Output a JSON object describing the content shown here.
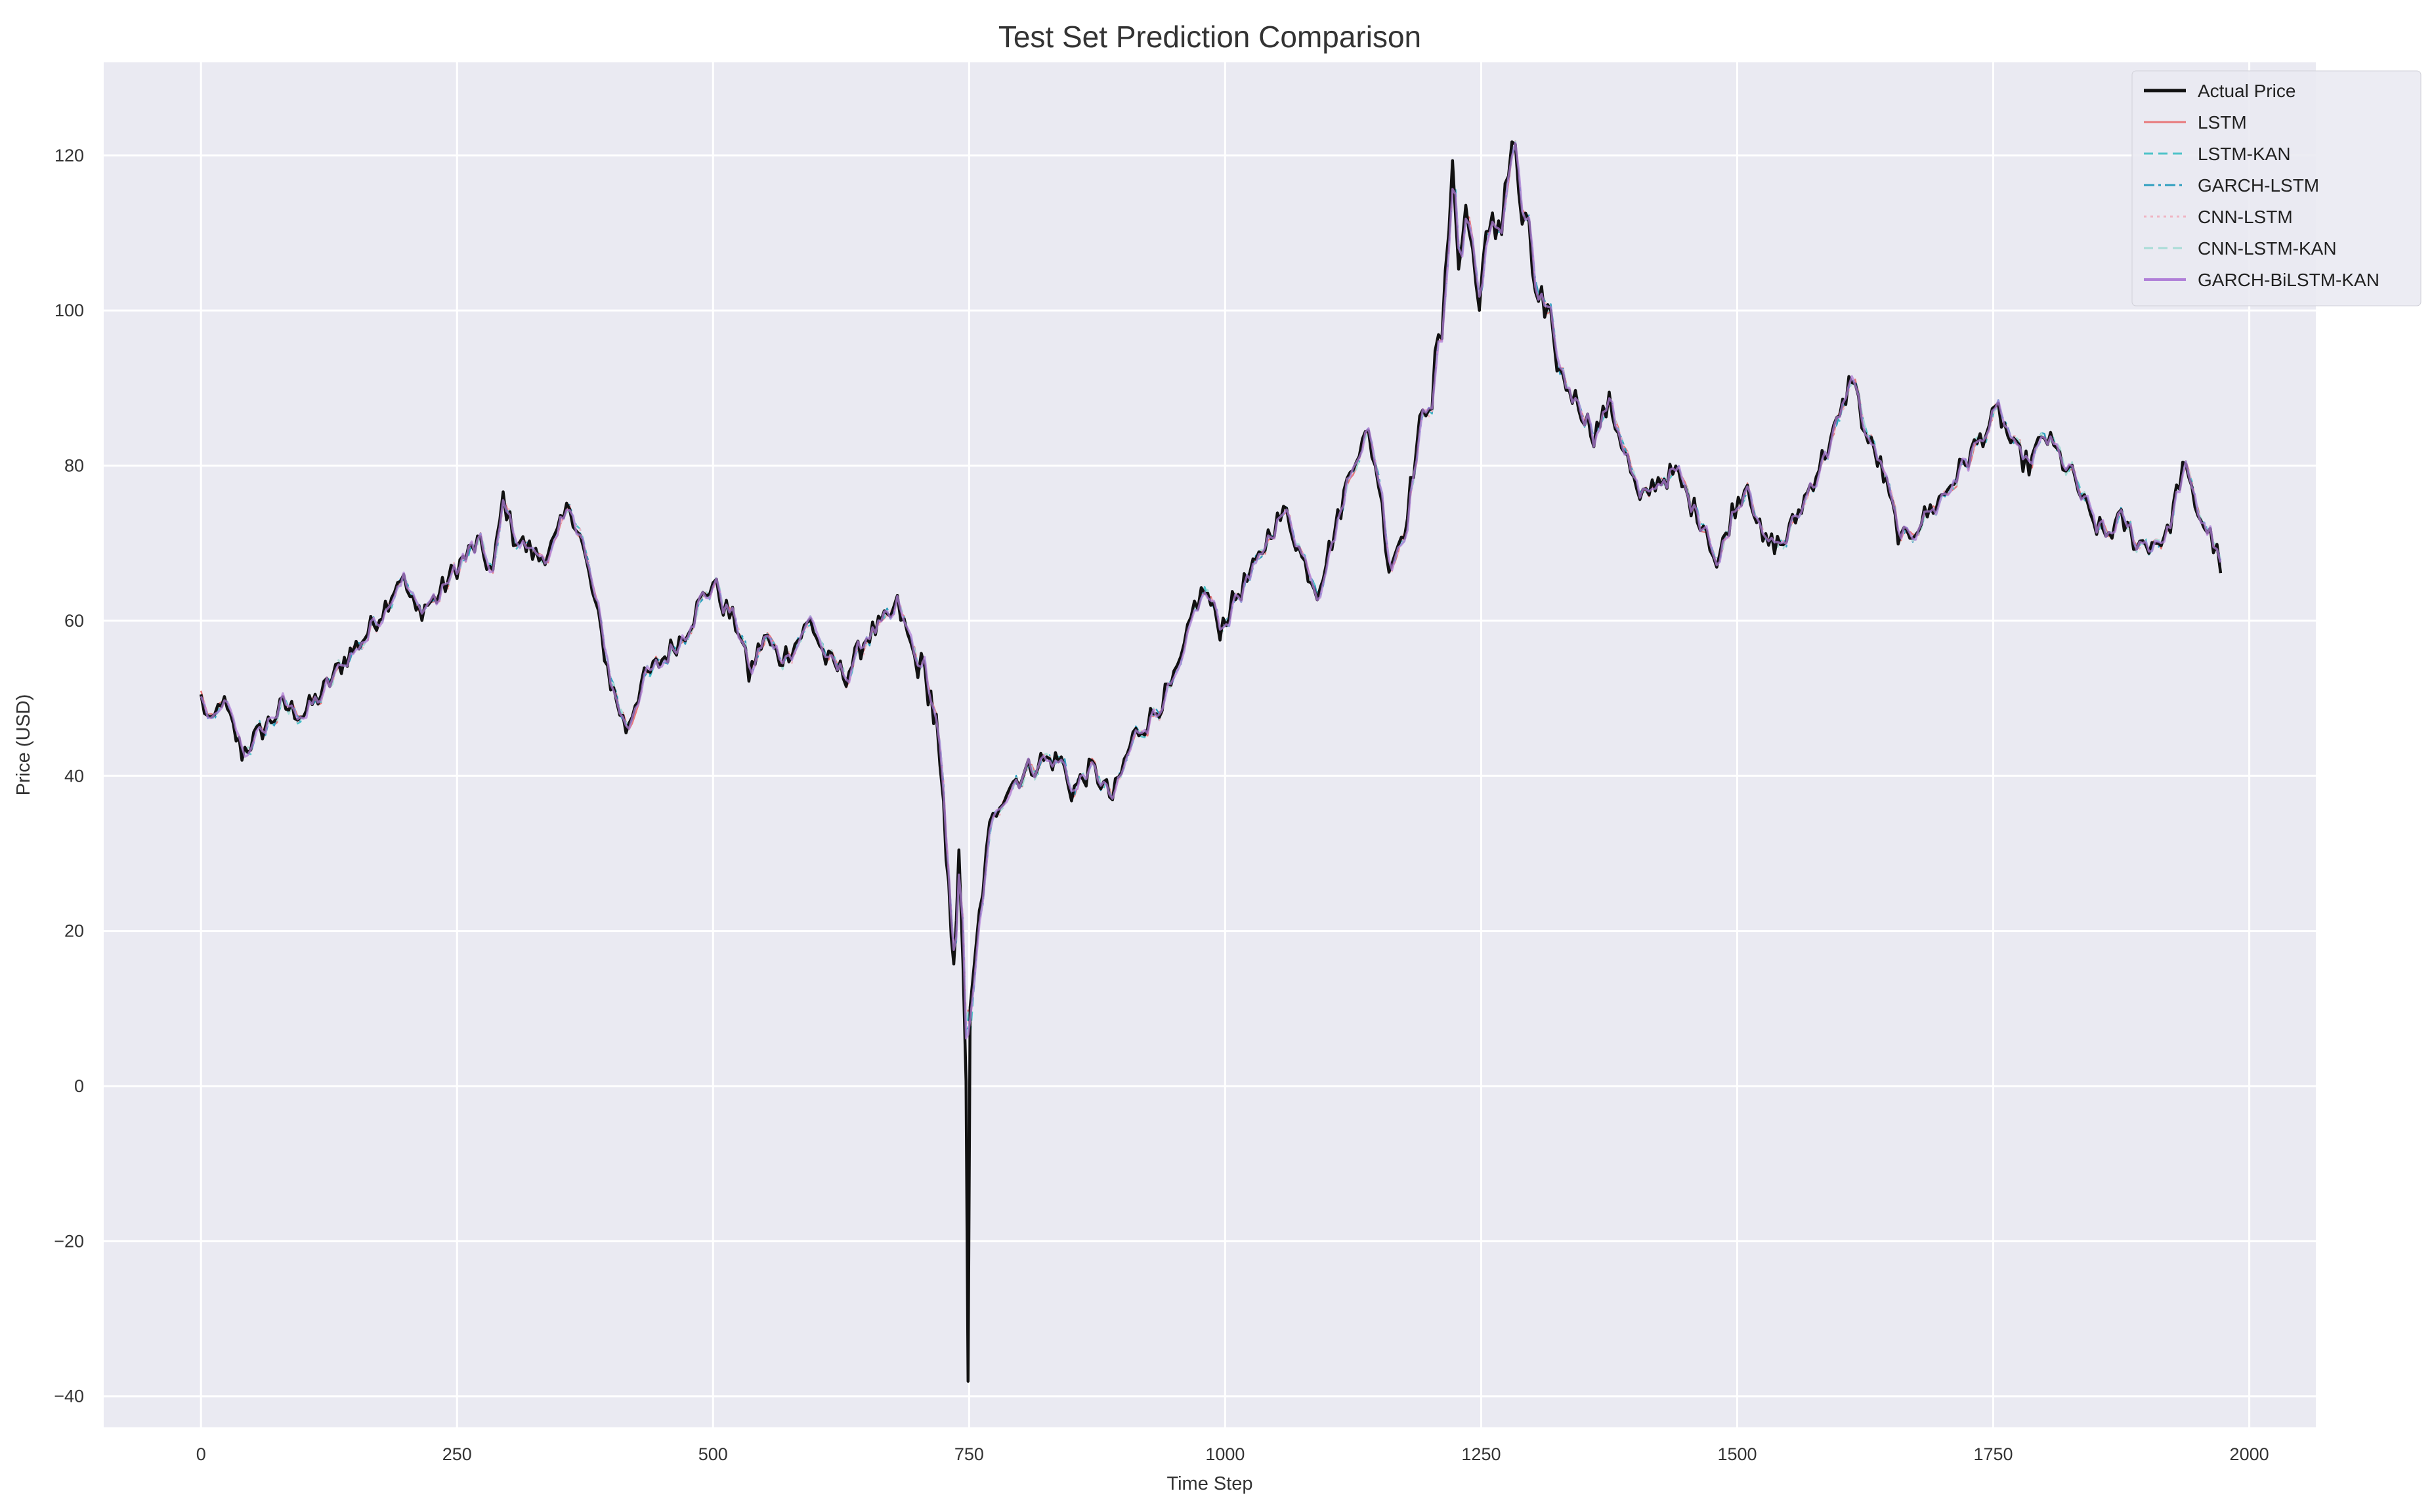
{
  "chart_data": {
    "type": "line",
    "title": "Test Set Prediction Comparison",
    "xlabel": "Time Step",
    "ylabel": "Price (USD)",
    "xlim": [
      -95,
      2065
    ],
    "ylim": [
      -44,
      132
    ],
    "xticks": [
      0,
      250,
      500,
      750,
      1000,
      1250,
      1500,
      1750,
      2000
    ],
    "yticks": [
      -40,
      -20,
      0,
      20,
      40,
      60,
      80,
      100,
      120
    ],
    "grid": true,
    "legend_position": "upper-right",
    "background": "#eaeaf2",
    "anchors": [
      [
        0,
        50
      ],
      [
        10,
        46
      ],
      [
        20,
        50
      ],
      [
        40,
        43
      ],
      [
        60,
        46
      ],
      [
        80,
        49
      ],
      [
        100,
        48
      ],
      [
        120,
        51
      ],
      [
        140,
        55
      ],
      [
        160,
        58
      ],
      [
        180,
        62
      ],
      [
        195,
        66
      ],
      [
        210,
        61
      ],
      [
        230,
        63
      ],
      [
        250,
        67
      ],
      [
        270,
        70
      ],
      [
        285,
        66
      ],
      [
        295,
        76
      ],
      [
        305,
        71
      ],
      [
        330,
        68
      ],
      [
        345,
        70
      ],
      [
        360,
        75
      ],
      [
        370,
        71
      ],
      [
        385,
        62
      ],
      [
        400,
        52
      ],
      [
        415,
        46
      ],
      [
        430,
        52
      ],
      [
        450,
        55
      ],
      [
        470,
        58
      ],
      [
        490,
        63
      ],
      [
        500,
        65
      ],
      [
        510,
        62
      ],
      [
        525,
        59
      ],
      [
        535,
        53
      ],
      [
        550,
        58
      ],
      [
        565,
        55
      ],
      [
        580,
        57
      ],
      [
        595,
        60
      ],
      [
        610,
        55
      ],
      [
        630,
        53
      ],
      [
        650,
        58
      ],
      [
        670,
        60
      ],
      [
        680,
        62
      ],
      [
        690,
        58
      ],
      [
        700,
        54
      ],
      [
        710,
        52
      ],
      [
        718,
        46
      ],
      [
        725,
        34
      ],
      [
        730,
        24
      ],
      [
        735,
        18
      ],
      [
        740,
        28
      ],
      [
        744,
        14
      ],
      [
        747,
        2
      ],
      [
        749,
        -37
      ],
      [
        751,
        8
      ],
      [
        755,
        14
      ],
      [
        760,
        22
      ],
      [
        770,
        33
      ],
      [
        780,
        37
      ],
      [
        790,
        39
      ],
      [
        820,
        42
      ],
      [
        840,
        42
      ],
      [
        850,
        38
      ],
      [
        870,
        41
      ],
      [
        890,
        37
      ],
      [
        910,
        45
      ],
      [
        930,
        48
      ],
      [
        950,
        52
      ],
      [
        960,
        56
      ],
      [
        970,
        62
      ],
      [
        980,
        64
      ],
      [
        995,
        59
      ],
      [
        1010,
        63
      ],
      [
        1030,
        67
      ],
      [
        1045,
        72
      ],
      [
        1060,
        74
      ],
      [
        1075,
        68
      ],
      [
        1090,
        64
      ],
      [
        1110,
        73
      ],
      [
        1125,
        81
      ],
      [
        1140,
        84
      ],
      [
        1150,
        78
      ],
      [
        1160,
        67
      ],
      [
        1175,
        72
      ],
      [
        1190,
        85
      ],
      [
        1205,
        91
      ],
      [
        1215,
        101
      ],
      [
        1222,
        123
      ],
      [
        1228,
        104
      ],
      [
        1235,
        114
      ],
      [
        1245,
        103
      ],
      [
        1258,
        108
      ],
      [
        1270,
        113
      ],
      [
        1280,
        122
      ],
      [
        1290,
        112
      ],
      [
        1300,
        105
      ],
      [
        1315,
        97
      ],
      [
        1330,
        91
      ],
      [
        1345,
        88
      ],
      [
        1360,
        84
      ],
      [
        1375,
        88
      ],
      [
        1390,
        82
      ],
      [
        1405,
        75
      ],
      [
        1420,
        78
      ],
      [
        1440,
        79
      ],
      [
        1455,
        75
      ],
      [
        1470,
        72
      ],
      [
        1480,
        67
      ],
      [
        1495,
        74
      ],
      [
        1510,
        78
      ],
      [
        1525,
        70
      ],
      [
        1545,
        70
      ],
      [
        1560,
        74
      ],
      [
        1580,
        80
      ],
      [
        1600,
        86
      ],
      [
        1612,
        92
      ],
      [
        1625,
        84
      ],
      [
        1640,
        80
      ],
      [
        1660,
        70
      ],
      [
        1680,
        73
      ],
      [
        1700,
        76
      ],
      [
        1720,
        80
      ],
      [
        1740,
        84
      ],
      [
        1755,
        87
      ],
      [
        1770,
        82
      ],
      [
        1785,
        80
      ],
      [
        1800,
        84
      ],
      [
        1815,
        81
      ],
      [
        1830,
        78
      ],
      [
        1845,
        73
      ],
      [
        1860,
        71
      ],
      [
        1875,
        73
      ],
      [
        1890,
        70
      ],
      [
        1905,
        70
      ],
      [
        1920,
        71
      ],
      [
        1935,
        80
      ],
      [
        1950,
        74
      ],
      [
        1965,
        70
      ],
      [
        1972,
        67
      ]
    ],
    "series": [
      {
        "name": "Actual Price",
        "color": "#111111",
        "style": "solid"
      },
      {
        "name": "LSTM",
        "color": "#e8787a",
        "style": "solid"
      },
      {
        "name": "LSTM-KAN",
        "color": "#4fc3c9",
        "style": "dashed"
      },
      {
        "name": "GARCH-LSTM",
        "color": "#2e9fbf",
        "style": "dashdot"
      },
      {
        "name": "CNN-LSTM",
        "color": "#f0b6c4",
        "style": "dotted"
      },
      {
        "name": "CNN-LSTM-KAN",
        "color": "#a8dcd6",
        "style": "dashed"
      },
      {
        "name": "GARCH-BiLSTM-KAN",
        "color": "#b07fd8",
        "style": "solid"
      }
    ]
  }
}
